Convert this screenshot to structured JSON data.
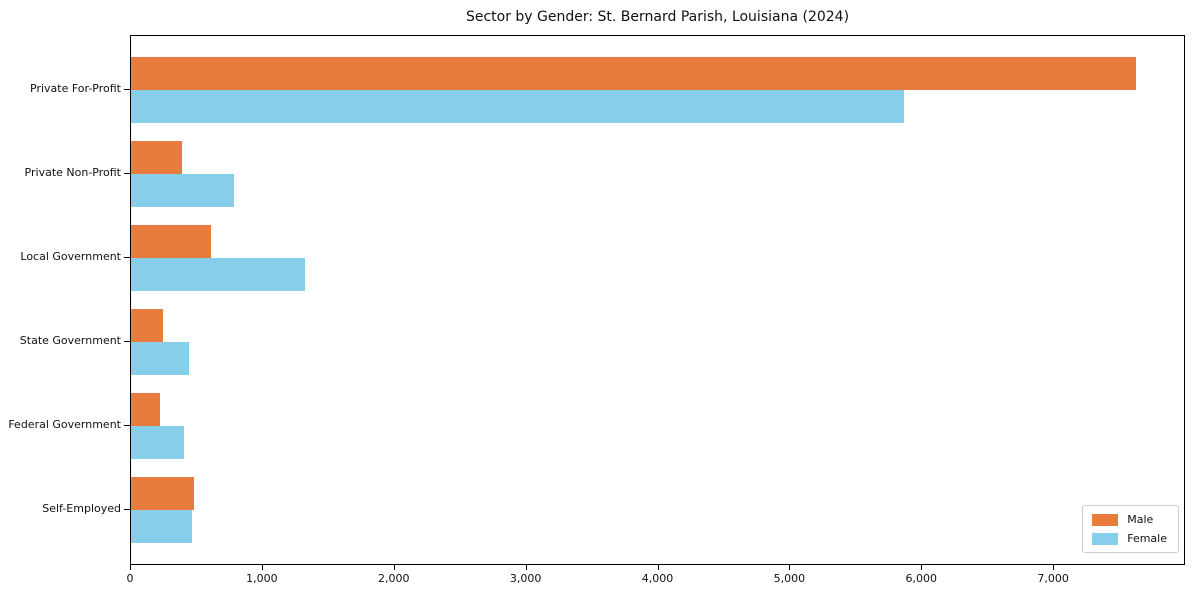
{
  "chart_data": {
    "type": "bar",
    "orientation": "horizontal",
    "title": "Sector by Gender: St. Bernard Parish, Louisiana (2024)",
    "categories": [
      "Private For-Profit",
      "Private Non-Profit",
      "Local Government",
      "State Government",
      "Federal Government",
      "Self-Employed"
    ],
    "series": [
      {
        "name": "Male",
        "color": "#e87b3e",
        "values": [
          7620,
          390,
          610,
          240,
          220,
          480
        ]
      },
      {
        "name": "Female",
        "color": "#87ceeb",
        "values": [
          5860,
          780,
          1320,
          440,
          400,
          460
        ]
      }
    ],
    "xlabel": "",
    "ylabel": "",
    "xlim": [
      0,
      8000
    ],
    "xticks": {
      "values": [
        0,
        1000,
        2000,
        3000,
        4000,
        5000,
        6000,
        7000
      ],
      "labels": [
        "0",
        "1,000",
        "2,000",
        "3,000",
        "4,000",
        "5,000",
        "6,000",
        "7,000"
      ]
    },
    "grid": false,
    "legend": {
      "position": "lower right",
      "entries": [
        "Male",
        "Female"
      ]
    }
  }
}
